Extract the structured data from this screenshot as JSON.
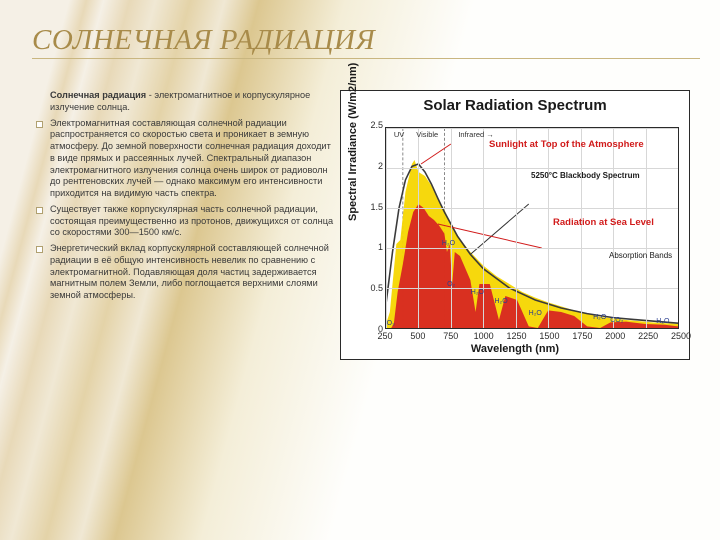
{
  "title": "СОЛНЕЧНАЯ РАДИАЦИЯ",
  "lead_bold": "Солнечная радиация",
  "lead_rest": " - электромагнитное и корпускулярное излучение солнца.",
  "bullets": [
    "Электромагнитная составляющая солнечной радиации распространяется со скоростью света и проникает в земную атмосферу. До земной поверхности солнечная радиация доходит в виде прямых и рассеянных лучей. Спектральный диапазон электромагнитного излучения солнца очень широк от радиоволн до рентгеновских лучей — однако максимум его интенсивности приходится на видимую часть спектра.",
    "Существует также корпускулярная часть солнечной радиации, состоящая преимущественно из протонов, движущихся от солнца со скоростями 300—1500 км/с.",
    "Энергетический вклад корпускулярной составляющей солнечной радиации в её общую интенсивность невелик по сравнению с электромагнитной. Подавляющая доля частиц задерживается магнитным полем Земли, либо поглощается верхними слоями земной атмосферы."
  ],
  "chart": {
    "type": "area",
    "title": "Solar Radiation Spectrum",
    "xlabel": "Wavelength (nm)",
    "ylabel": "Spectral Irradiance (W/m2/nm)",
    "xlim": [
      250,
      2500
    ],
    "ylim": [
      0,
      2.5
    ],
    "xticks": [
      250,
      500,
      750,
      1000,
      1250,
      1500,
      1750,
      2000,
      2250,
      2500
    ],
    "yticks": [
      0,
      0.5,
      1,
      1.5,
      2,
      2.5
    ],
    "region_labels": [
      {
        "text": "UV",
        "x_nm": 310
      },
      {
        "text": "Visible",
        "x_nm": 480
      },
      {
        "text": "Infrared →",
        "x_nm": 800
      }
    ],
    "region_dividers_nm": [
      380,
      700
    ],
    "series": {
      "top_atmosphere": {
        "color": "#f6d600",
        "label": "Sunlight at Top of the Atmosphere",
        "label_color": "#d11b1b",
        "points_nm_irr": [
          [
            250,
            0.05
          ],
          [
            280,
            0.2
          ],
          [
            300,
            0.55
          ],
          [
            330,
            1.05
          ],
          [
            360,
            1.1
          ],
          [
            400,
            1.7
          ],
          [
            450,
            2.05
          ],
          [
            470,
            2.1
          ],
          [
            500,
            1.95
          ],
          [
            550,
            1.9
          ],
          [
            600,
            1.78
          ],
          [
            650,
            1.6
          ],
          [
            700,
            1.48
          ],
          [
            750,
            1.3
          ],
          [
            800,
            1.15
          ],
          [
            900,
            0.95
          ],
          [
            1000,
            0.78
          ],
          [
            1100,
            0.65
          ],
          [
            1200,
            0.55
          ],
          [
            1300,
            0.45
          ],
          [
            1400,
            0.38
          ],
          [
            1500,
            0.32
          ],
          [
            1700,
            0.22
          ],
          [
            1900,
            0.14
          ],
          [
            2100,
            0.1
          ],
          [
            2300,
            0.07
          ],
          [
            2500,
            0.05
          ]
        ]
      },
      "sea_level": {
        "color": "#d62222",
        "label": "Radiation at Sea Level",
        "label_color": "#d11b1b",
        "points_nm_irr": [
          [
            290,
            0.0
          ],
          [
            310,
            0.05
          ],
          [
            340,
            0.45
          ],
          [
            380,
            0.8
          ],
          [
            420,
            1.2
          ],
          [
            460,
            1.45
          ],
          [
            500,
            1.55
          ],
          [
            540,
            1.5
          ],
          [
            580,
            1.4
          ],
          [
            620,
            1.35
          ],
          [
            660,
            1.28
          ],
          [
            700,
            1.18
          ],
          [
            720,
            0.95
          ],
          [
            740,
            1.05
          ],
          [
            760,
            0.55
          ],
          [
            780,
            0.95
          ],
          [
            820,
            0.9
          ],
          [
            900,
            0.6
          ],
          [
            940,
            0.2
          ],
          [
            970,
            0.55
          ],
          [
            1050,
            0.55
          ],
          [
            1120,
            0.1
          ],
          [
            1170,
            0.4
          ],
          [
            1260,
            0.35
          ],
          [
            1350,
            0.02
          ],
          [
            1420,
            0.0
          ],
          [
            1500,
            0.22
          ],
          [
            1600,
            0.2
          ],
          [
            1700,
            0.15
          ],
          [
            1800,
            0.02
          ],
          [
            1900,
            0.0
          ],
          [
            1980,
            0.07
          ],
          [
            2100,
            0.08
          ],
          [
            2250,
            0.05
          ],
          [
            2400,
            0.04
          ],
          [
            2500,
            0.02
          ]
        ]
      },
      "blackbody": {
        "color": "#3a3a3a",
        "line_width": 1.6,
        "label": "5250°C Blackbody Spectrum",
        "points_nm_irr": [
          [
            250,
            0.3
          ],
          [
            300,
            0.95
          ],
          [
            350,
            1.5
          ],
          [
            400,
            1.85
          ],
          [
            450,
            2.02
          ],
          [
            500,
            2.05
          ],
          [
            550,
            1.95
          ],
          [
            600,
            1.8
          ],
          [
            650,
            1.62
          ],
          [
            700,
            1.45
          ],
          [
            800,
            1.15
          ],
          [
            900,
            0.92
          ],
          [
            1000,
            0.74
          ],
          [
            1200,
            0.5
          ],
          [
            1400,
            0.35
          ],
          [
            1600,
            0.25
          ],
          [
            1800,
            0.18
          ],
          [
            2000,
            0.13
          ],
          [
            2200,
            0.1
          ],
          [
            2500,
            0.06
          ]
        ]
      }
    },
    "absorption_bands": [
      {
        "label": "O₃",
        "x_nm": 300,
        "y": 0.02
      },
      {
        "label": "O₂",
        "x_nm": 760,
        "y": 0.5
      },
      {
        "label": "H₂O",
        "x_nm": 720,
        "y": 1.0
      },
      {
        "label": "H₂O",
        "x_nm": 940,
        "y": 0.4
      },
      {
        "label": "H₂O",
        "x_nm": 1120,
        "y": 0.3
      },
      {
        "label": "H₂O",
        "x_nm": 1380,
        "y": 0.15
      },
      {
        "label": "H₂O",
        "x_nm": 1870,
        "y": 0.1
      },
      {
        "label": "CO₂",
        "x_nm": 2000,
        "y": 0.06
      },
      {
        "label": "H₂O",
        "x_nm": 2350,
        "y": 0.05
      }
    ],
    "absorption_label": "Absorption Bands",
    "background_color": "#ffffff",
    "grid_color": "#d7d7d7",
    "title_fontsize": 15,
    "label_fontsize": 11
  }
}
